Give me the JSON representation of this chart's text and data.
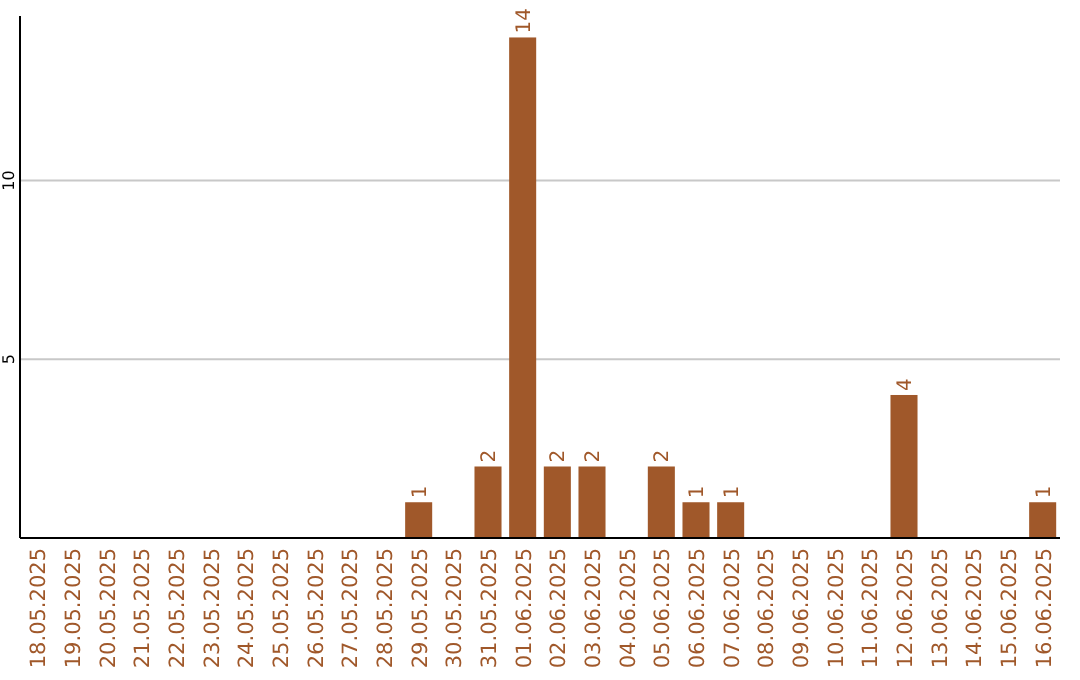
{
  "chart_data": {
    "type": "bar",
    "categories": [
      "18.05.2025",
      "19.05.2025",
      "20.05.2025",
      "21.05.2025",
      "22.05.2025",
      "23.05.2025",
      "24.05.2025",
      "25.05.2025",
      "26.05.2025",
      "27.05.2025",
      "28.05.2025",
      "29.05.2025",
      "30.05.2025",
      "31.05.2025",
      "01.06.2025",
      "02.06.2025",
      "03.06.2025",
      "04.06.2025",
      "05.06.2025",
      "06.06.2025",
      "07.06.2025",
      "08.06.2025",
      "09.06.2025",
      "10.06.2025",
      "11.06.2025",
      "12.06.2025",
      "13.06.2025",
      "14.06.2025",
      "15.06.2025",
      "16.06.2025"
    ],
    "values": [
      0,
      0,
      0,
      0,
      0,
      0,
      0,
      0,
      0,
      0,
      0,
      1,
      0,
      2,
      14,
      2,
      2,
      0,
      2,
      1,
      1,
      0,
      0,
      0,
      0,
      4,
      0,
      0,
      0,
      1
    ],
    "value_labels": [
      null,
      null,
      null,
      null,
      null,
      null,
      null,
      null,
      null,
      null,
      null,
      "1",
      null,
      "2",
      "14",
      "2",
      "2",
      null,
      "2",
      "1",
      "1",
      null,
      null,
      null,
      null,
      "4",
      null,
      null,
      null,
      "1"
    ],
    "color": "#a0582a",
    "ylim": [
      0,
      14.6
    ],
    "yticks": [
      5,
      10
    ],
    "grid": "y"
  }
}
